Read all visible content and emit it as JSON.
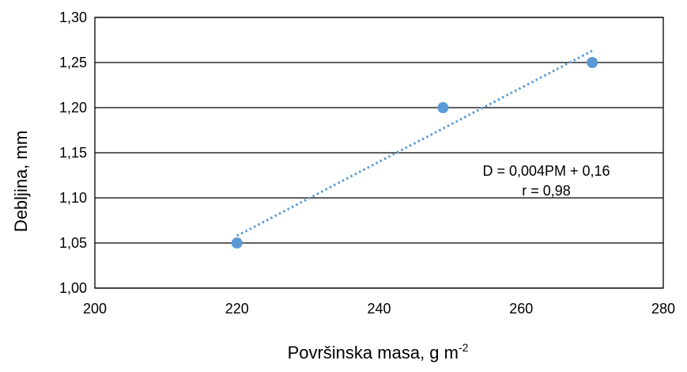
{
  "chart_data": {
    "type": "scatter",
    "xlabel": "Površinska masa, g m",
    "xlabel_sup": "-2",
    "ylabel": "Debljina, mm",
    "xlim": [
      200,
      280
    ],
    "ylim": [
      1.0,
      1.3
    ],
    "x_ticks": [
      200,
      220,
      240,
      260,
      280
    ],
    "x_tick_labels": [
      "200",
      "220",
      "240",
      "260",
      "280"
    ],
    "y_ticks": [
      1.0,
      1.05,
      1.1,
      1.15,
      1.2,
      1.25,
      1.3
    ],
    "y_tick_labels": [
      "1,00",
      "1,05",
      "1,10",
      "1,15",
      "1,20",
      "1,25",
      "1,30"
    ],
    "grid": "horizontal",
    "series": [
      {
        "x": [
          220,
          249,
          270
        ],
        "y": [
          1.05,
          1.2,
          1.25
        ]
      }
    ],
    "trendline": {
      "style": "dotted",
      "x": [
        220,
        270
      ],
      "y": [
        1.058,
        1.263
      ]
    },
    "annotation": {
      "equation": "D = 0,004PM + 0,16",
      "r": "r = 0,98"
    },
    "colors": {
      "marker": "#5B9BD5",
      "trendline": "#5B9BD5",
      "grid": "#000000",
      "text": "#000000"
    }
  }
}
